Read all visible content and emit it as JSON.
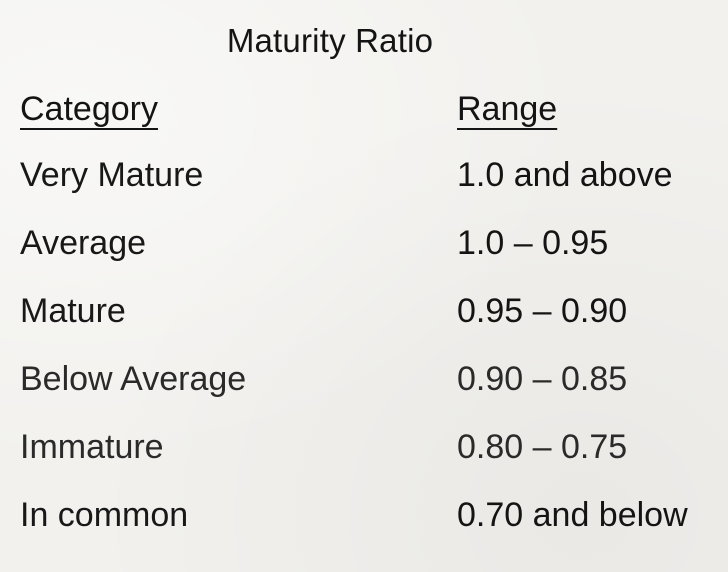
{
  "title": "Maturity Ratio",
  "headers": {
    "category": "Category",
    "range": "Range"
  },
  "rows": [
    {
      "category": "Very Mature",
      "range": "1.0 and above"
    },
    {
      "category": "Average",
      "range": "1.0 – 0.95"
    },
    {
      "category": "Mature",
      "range": "0.95 – 0.90"
    },
    {
      "category": "Below Average",
      "range": "0.90 – 0.85"
    },
    {
      "category": "Immature",
      "range": "0.80 – 0.75"
    },
    {
      "category": "In common",
      "range": "0.70 and below"
    }
  ]
}
